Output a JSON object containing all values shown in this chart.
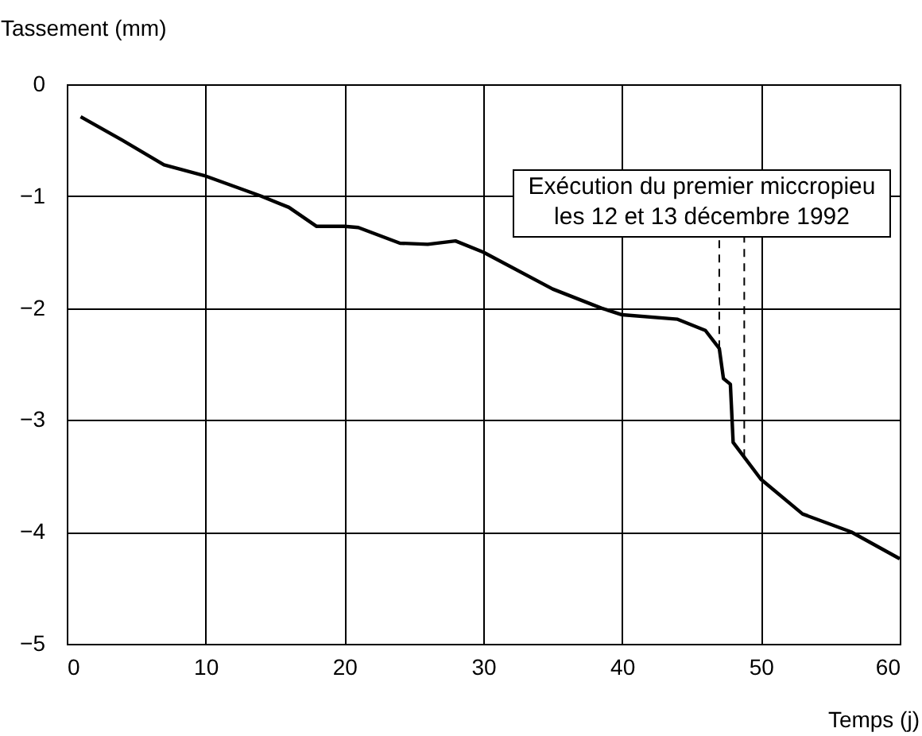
{
  "chart_data": {
    "type": "line",
    "xlabel": "Temps (j)",
    "ylabel": "Tassement (mm)",
    "x": [
      1,
      4,
      7,
      10,
      14,
      16,
      18,
      20,
      21,
      24,
      26,
      28,
      30,
      35,
      38.5,
      40,
      44,
      46,
      47,
      47.3,
      47.8,
      48,
      50,
      53,
      56.5,
      60
    ],
    "series": [
      {
        "color": "#000000",
        "values": [
          -0.29,
          -0.5,
          -0.72,
          -0.82,
          -1.0,
          -1.1,
          -1.27,
          -1.27,
          -1.28,
          -1.42,
          -1.43,
          -1.4,
          -1.5,
          -1.83,
          -2.0,
          -2.06,
          -2.1,
          -2.2,
          -2.36,
          -2.63,
          -2.68,
          -3.2,
          -3.53,
          -3.84,
          -4.0,
          -4.24
        ]
      }
    ],
    "xlim": [
      0,
      60
    ],
    "xticks": [
      0,
      10,
      20,
      30,
      40,
      50,
      60
    ],
    "ylim": [
      -5,
      0
    ],
    "yticks": [
      -5,
      -4,
      -3,
      -2,
      -1,
      0
    ],
    "grid": true,
    "marker": "none",
    "line_style": "solid",
    "ref_lines": [
      {
        "axis": "x",
        "value": 47,
        "line_style": "dashed"
      },
      {
        "axis": "x",
        "value": 48.8,
        "line_style": "dashed"
      }
    ],
    "annotations": [
      "Exécution du premier miccropieu\nles 12 et 13 décembre 1992"
    ]
  }
}
